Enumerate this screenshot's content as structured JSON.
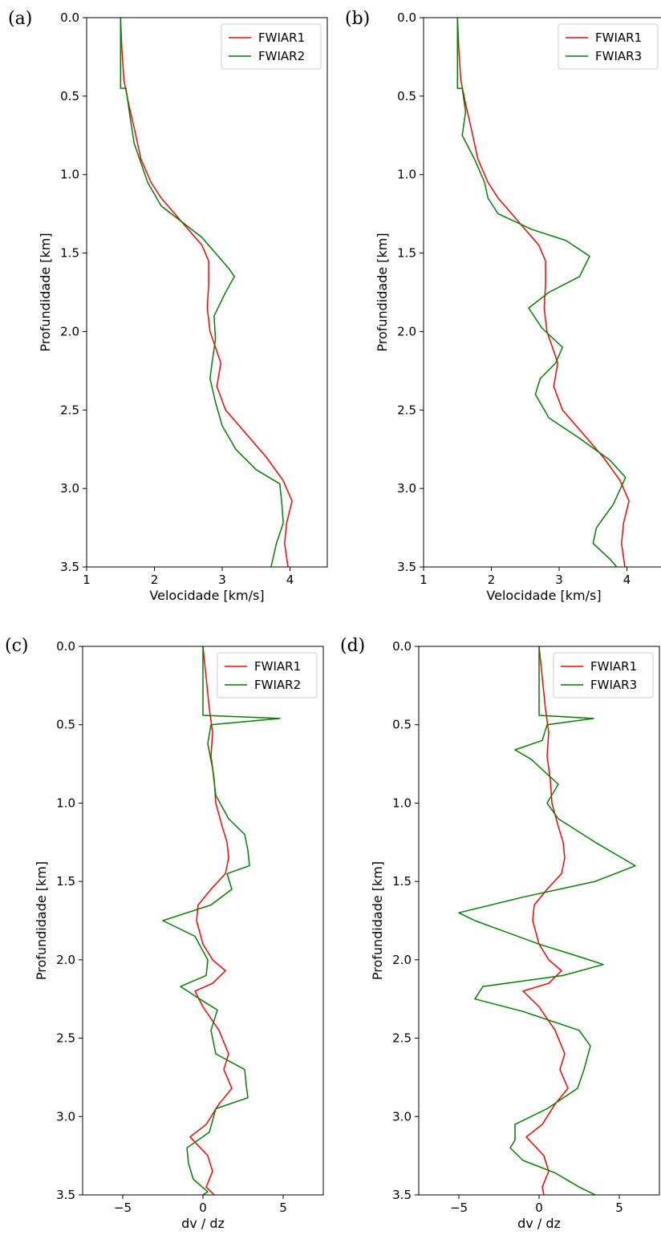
{
  "chart_data": [
    {
      "panel_label": "(a)",
      "type": "line",
      "orientation": "depth-vertical",
      "xlabel": "Velocidade [km/s]",
      "ylabel": "Profundidade [km]",
      "xlim": [
        1,
        4.55
      ],
      "ylim": [
        0,
        3.5
      ],
      "y_inverted": true,
      "xticks": [
        "1",
        "2",
        "3",
        "4"
      ],
      "yticks": [
        "0.0",
        "0.5",
        "1.0",
        "1.5",
        "2.0",
        "2.5",
        "3.0",
        "3.5"
      ],
      "legend_position": "top-right",
      "series": [
        {
          "name": "FWIAR1",
          "color": "#ff0000",
          "points": [
            [
              1.5,
              0
            ],
            [
              1.52,
              0.2
            ],
            [
              1.55,
              0.4
            ],
            [
              1.62,
              0.55
            ],
            [
              1.7,
              0.7
            ],
            [
              1.8,
              0.9
            ],
            [
              1.95,
              1.05
            ],
            [
              2.1,
              1.15
            ],
            [
              2.3,
              1.25
            ],
            [
              2.5,
              1.35
            ],
            [
              2.7,
              1.45
            ],
            [
              2.8,
              1.55
            ],
            [
              2.8,
              1.7
            ],
            [
              2.78,
              1.85
            ],
            [
              2.82,
              2.0
            ],
            [
              2.9,
              2.1
            ],
            [
              2.98,
              2.2
            ],
            [
              2.92,
              2.35
            ],
            [
              3.05,
              2.5
            ],
            [
              3.35,
              2.65
            ],
            [
              3.65,
              2.8
            ],
            [
              3.9,
              2.95
            ],
            [
              4.03,
              3.08
            ],
            [
              3.95,
              3.22
            ],
            [
              3.92,
              3.35
            ],
            [
              3.97,
              3.5
            ]
          ]
        },
        {
          "name": "FWIAR2",
          "color": "#008000",
          "points": [
            [
              1.5,
              0
            ],
            [
              1.5,
              0.45
            ],
            [
              1.58,
              0.45
            ],
            [
              1.63,
              0.6
            ],
            [
              1.7,
              0.8
            ],
            [
              1.9,
              1.05
            ],
            [
              2.1,
              1.2
            ],
            [
              2.4,
              1.3
            ],
            [
              2.7,
              1.4
            ],
            [
              2.9,
              1.5
            ],
            [
              3.1,
              1.6
            ],
            [
              3.18,
              1.65
            ],
            [
              3.05,
              1.75
            ],
            [
              2.88,
              1.9
            ],
            [
              2.9,
              2.05
            ],
            [
              2.85,
              2.2
            ],
            [
              2.82,
              2.3
            ],
            [
              2.9,
              2.45
            ],
            [
              3.0,
              2.6
            ],
            [
              3.2,
              2.75
            ],
            [
              3.5,
              2.88
            ],
            [
              3.85,
              2.97
            ],
            [
              3.88,
              3.1
            ],
            [
              3.9,
              3.22
            ],
            [
              3.8,
              3.35
            ],
            [
              3.72,
              3.5
            ]
          ]
        }
      ]
    },
    {
      "panel_label": "(b)",
      "type": "line",
      "orientation": "depth-vertical",
      "xlabel": "Velocidade [km/s]",
      "ylabel": "Profundidade [km]",
      "xlim": [
        1,
        4.55
      ],
      "ylim": [
        0,
        3.5
      ],
      "y_inverted": true,
      "xticks": [
        "1",
        "2",
        "3",
        "4"
      ],
      "yticks": [
        "0.0",
        "0.5",
        "1.0",
        "1.5",
        "2.0",
        "2.5",
        "3.0",
        "3.5"
      ],
      "legend_position": "top-right",
      "series": [
        {
          "name": "FWIAR1",
          "color": "#ff0000",
          "points": [
            [
              1.5,
              0
            ],
            [
              1.52,
              0.2
            ],
            [
              1.55,
              0.4
            ],
            [
              1.62,
              0.55
            ],
            [
              1.7,
              0.7
            ],
            [
              1.8,
              0.9
            ],
            [
              1.95,
              1.05
            ],
            [
              2.1,
              1.15
            ],
            [
              2.3,
              1.25
            ],
            [
              2.5,
              1.35
            ],
            [
              2.7,
              1.45
            ],
            [
              2.8,
              1.55
            ],
            [
              2.8,
              1.7
            ],
            [
              2.78,
              1.85
            ],
            [
              2.82,
              2.0
            ],
            [
              2.9,
              2.1
            ],
            [
              2.98,
              2.2
            ],
            [
              2.92,
              2.35
            ],
            [
              3.05,
              2.5
            ],
            [
              3.35,
              2.65
            ],
            [
              3.65,
              2.8
            ],
            [
              3.9,
              2.95
            ],
            [
              4.03,
              3.08
            ],
            [
              3.95,
              3.22
            ],
            [
              3.92,
              3.35
            ],
            [
              3.97,
              3.5
            ]
          ]
        },
        {
          "name": "FWIAR3",
          "color": "#008000",
          "points": [
            [
              1.5,
              0
            ],
            [
              1.5,
              0.45
            ],
            [
              1.57,
              0.45
            ],
            [
              1.62,
              0.6
            ],
            [
              1.57,
              0.75
            ],
            [
              1.75,
              0.9
            ],
            [
              1.9,
              1.05
            ],
            [
              1.95,
              1.15
            ],
            [
              2.1,
              1.25
            ],
            [
              2.6,
              1.35
            ],
            [
              3.1,
              1.42
            ],
            [
              3.45,
              1.52
            ],
            [
              3.3,
              1.65
            ],
            [
              2.85,
              1.75
            ],
            [
              2.55,
              1.85
            ],
            [
              2.75,
              1.98
            ],
            [
              3.05,
              2.1
            ],
            [
              2.95,
              2.2
            ],
            [
              2.72,
              2.3
            ],
            [
              2.65,
              2.4
            ],
            [
              2.85,
              2.55
            ],
            [
              3.3,
              2.68
            ],
            [
              3.75,
              2.82
            ],
            [
              3.98,
              2.93
            ],
            [
              3.8,
              3.1
            ],
            [
              3.55,
              3.25
            ],
            [
              3.5,
              3.35
            ],
            [
              3.75,
              3.45
            ],
            [
              3.85,
              3.5
            ]
          ]
        }
      ]
    },
    {
      "panel_label": "(c)",
      "type": "line",
      "orientation": "depth-vertical",
      "xlabel": "dv / dz",
      "ylabel": "Profundidade [km]",
      "xlim": [
        -7.5,
        7.5
      ],
      "ylim": [
        0,
        3.5
      ],
      "y_inverted": true,
      "xticks": [
        "−5",
        "0",
        "5"
      ],
      "yticks": [
        "0.0",
        "0.5",
        "1.0",
        "1.5",
        "2.0",
        "2.5",
        "3.0",
        "3.5"
      ],
      "legend_position": "top-right",
      "series": [
        {
          "name": "FWIAR1",
          "color": "#ff0000",
          "points": [
            [
              0,
              0
            ],
            [
              0.2,
              0.2
            ],
            [
              0.4,
              0.4
            ],
            [
              0.6,
              0.55
            ],
            [
              0.5,
              0.7
            ],
            [
              0.7,
              0.85
            ],
            [
              0.8,
              1.0
            ],
            [
              1.2,
              1.15
            ],
            [
              1.5,
              1.25
            ],
            [
              1.6,
              1.35
            ],
            [
              1.4,
              1.45
            ],
            [
              0.5,
              1.55
            ],
            [
              -0.3,
              1.65
            ],
            [
              -0.4,
              1.75
            ],
            [
              0,
              1.9
            ],
            [
              0.6,
              2.0
            ],
            [
              1.4,
              2.07
            ],
            [
              0.6,
              2.15
            ],
            [
              -0.5,
              2.2
            ],
            [
              0,
              2.3
            ],
            [
              1.0,
              2.45
            ],
            [
              1.6,
              2.6
            ],
            [
              1.3,
              2.7
            ],
            [
              1.8,
              2.82
            ],
            [
              1.0,
              2.92
            ],
            [
              0.2,
              3.05
            ],
            [
              -0.8,
              3.13
            ],
            [
              0.3,
              3.25
            ],
            [
              0.6,
              3.35
            ],
            [
              0.2,
              3.45
            ],
            [
              0.7,
              3.5
            ]
          ]
        },
        {
          "name": "FWIAR2",
          "color": "#008000",
          "points": [
            [
              0,
              0
            ],
            [
              0,
              0.44
            ],
            [
              4.8,
              0.46
            ],
            [
              0.5,
              0.5
            ],
            [
              0.3,
              0.62
            ],
            [
              0.6,
              0.78
            ],
            [
              0.8,
              0.95
            ],
            [
              1.6,
              1.1
            ],
            [
              2.6,
              1.2
            ],
            [
              2.8,
              1.3
            ],
            [
              2.9,
              1.4
            ],
            [
              1.5,
              1.45
            ],
            [
              1.8,
              1.55
            ],
            [
              0.5,
              1.65
            ],
            [
              -2.5,
              1.75
            ],
            [
              -0.5,
              1.85
            ],
            [
              0.3,
              2.0
            ],
            [
              0.2,
              2.1
            ],
            [
              -1.4,
              2.17
            ],
            [
              -0.2,
              2.25
            ],
            [
              0.9,
              2.32
            ],
            [
              0.5,
              2.45
            ],
            [
              0.8,
              2.6
            ],
            [
              2.6,
              2.7
            ],
            [
              2.7,
              2.8
            ],
            [
              2.8,
              2.88
            ],
            [
              0.8,
              2.95
            ],
            [
              0.4,
              3.1
            ],
            [
              -1.0,
              3.2
            ],
            [
              -0.9,
              3.3
            ],
            [
              -0.6,
              3.4
            ],
            [
              0.3,
              3.48
            ],
            [
              0.0,
              3.5
            ]
          ]
        }
      ]
    },
    {
      "panel_label": "(d)",
      "type": "line",
      "orientation": "depth-vertical",
      "xlabel": "dv / dz",
      "ylabel": "Profundidade [km]",
      "xlim": [
        -7.5,
        7.5
      ],
      "ylim": [
        0,
        3.5
      ],
      "y_inverted": true,
      "xticks": [
        "−5",
        "0",
        "5"
      ],
      "yticks": [
        "0.0",
        "0.5",
        "1.0",
        "1.5",
        "2.0",
        "2.5",
        "3.0",
        "3.5"
      ],
      "legend_position": "top-right",
      "series": [
        {
          "name": "FWIAR1",
          "color": "#ff0000",
          "points": [
            [
              0,
              0
            ],
            [
              0.2,
              0.2
            ],
            [
              0.4,
              0.4
            ],
            [
              0.6,
              0.55
            ],
            [
              0.5,
              0.7
            ],
            [
              0.7,
              0.85
            ],
            [
              0.8,
              1.0
            ],
            [
              1.2,
              1.15
            ],
            [
              1.5,
              1.25
            ],
            [
              1.6,
              1.35
            ],
            [
              1.4,
              1.45
            ],
            [
              0.5,
              1.55
            ],
            [
              -0.3,
              1.65
            ],
            [
              -0.4,
              1.75
            ],
            [
              0,
              1.9
            ],
            [
              0.6,
              2.0
            ],
            [
              1.4,
              2.07
            ],
            [
              0.6,
              2.15
            ],
            [
              -1.0,
              2.2
            ],
            [
              0,
              2.3
            ],
            [
              1.0,
              2.45
            ],
            [
              1.6,
              2.6
            ],
            [
              1.3,
              2.7
            ],
            [
              1.8,
              2.82
            ],
            [
              1.0,
              2.92
            ],
            [
              0.2,
              3.05
            ],
            [
              -0.8,
              3.13
            ],
            [
              0.3,
              3.25
            ],
            [
              0.6,
              3.35
            ],
            [
              0.2,
              3.45
            ],
            [
              0.3,
              3.5
            ]
          ]
        },
        {
          "name": "FWIAR3",
          "color": "#008000",
          "points": [
            [
              0,
              0
            ],
            [
              0,
              0.44
            ],
            [
              3.4,
              0.46
            ],
            [
              0.5,
              0.5
            ],
            [
              0.2,
              0.6
            ],
            [
              -1.5,
              0.66
            ],
            [
              -0.5,
              0.72
            ],
            [
              1.2,
              0.88
            ],
            [
              0.5,
              1.0
            ],
            [
              1.2,
              1.1
            ],
            [
              3.5,
              1.25
            ],
            [
              6.0,
              1.4
            ],
            [
              3.5,
              1.5
            ],
            [
              -1.0,
              1.6
            ],
            [
              -5.0,
              1.7
            ],
            [
              -4.0,
              1.75
            ],
            [
              0.0,
              1.9
            ],
            [
              2.5,
              1.98
            ],
            [
              4.0,
              2.03
            ],
            [
              1.5,
              2.1
            ],
            [
              -3.5,
              2.17
            ],
            [
              -4.0,
              2.25
            ],
            [
              -1.0,
              2.33
            ],
            [
              2.5,
              2.45
            ],
            [
              3.2,
              2.55
            ],
            [
              2.8,
              2.7
            ],
            [
              2.4,
              2.82
            ],
            [
              0.5,
              2.95
            ],
            [
              -1.5,
              3.05
            ],
            [
              -1.5,
              3.15
            ],
            [
              -1.8,
              3.2
            ],
            [
              -1.0,
              3.28
            ],
            [
              1.0,
              3.36
            ],
            [
              2.5,
              3.45
            ],
            [
              3.5,
              3.5
            ]
          ]
        }
      ]
    }
  ]
}
